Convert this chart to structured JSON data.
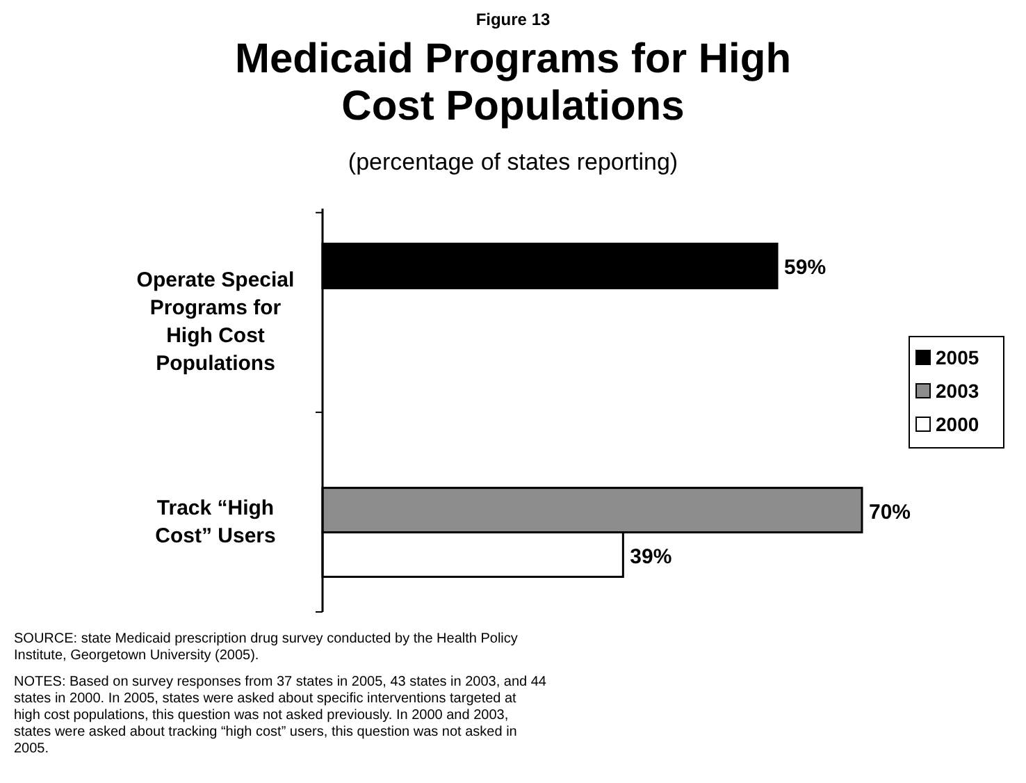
{
  "chart_data": {
    "type": "bar",
    "orientation": "horizontal",
    "title": "Medicaid Programs for High Cost Populations",
    "subtitle": "(percentage of states reporting)",
    "categories": [
      "Operate Special Programs for High Cost Populations",
      "Track “High Cost” Users"
    ],
    "series": [
      {
        "name": "2005",
        "color": "#000000",
        "values": [
          59,
          null
        ],
        "value_labels": [
          "59%",
          null
        ]
      },
      {
        "name": "2003",
        "color": "#8c8c8c",
        "values": [
          null,
          70
        ],
        "value_labels": [
          null,
          "70%"
        ]
      },
      {
        "name": "2000",
        "color": "#ffffff",
        "values": [
          null,
          39
        ],
        "value_labels": [
          null,
          "39%"
        ]
      }
    ],
    "tick_labels": "y",
    "legend": "right",
    "grid": false,
    "annotations": [
      "Figure 13",
      "SOURCE: state Medicaid prescription drug survey conducted by the Health Policy Institute, Georgetown University (2005).",
      "NOTES: Based on survey responses from 37 states in 2005, 43 states in 2003, and 44 states in 2000. In 2005, states were asked about specific interventions targeted at high cost populations, this question was not asked previously.  In 2000 and 2003, states were asked about tracking “high cost” users, this question was not asked in 2005."
    ]
  }
}
